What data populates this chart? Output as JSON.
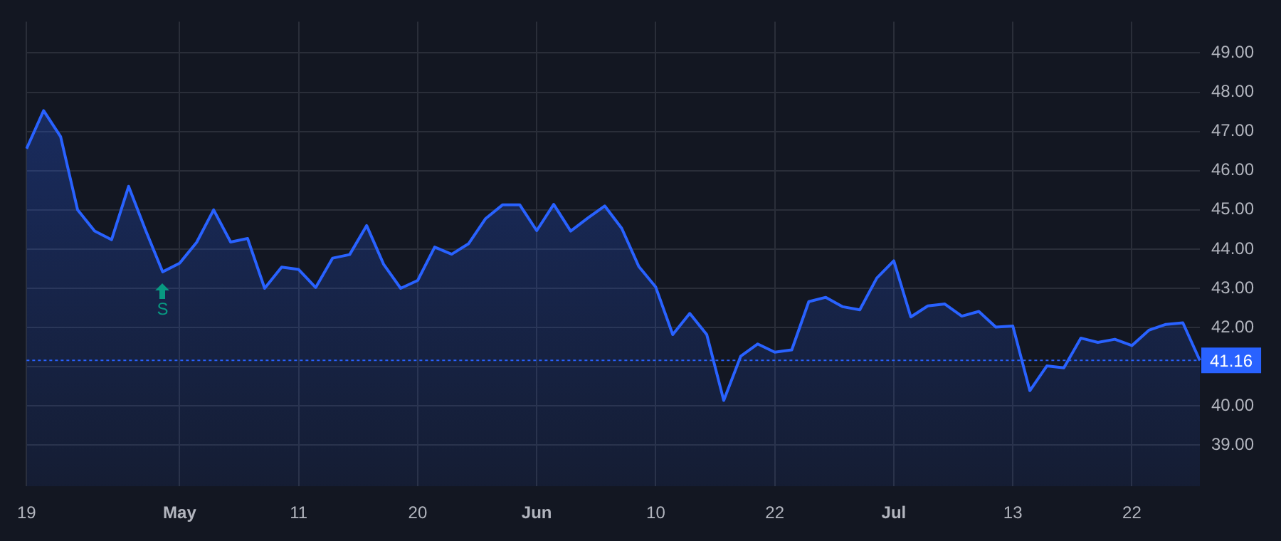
{
  "chart_data": {
    "type": "area",
    "categories": [
      "19",
      null,
      null,
      null,
      null,
      null,
      null,
      null,
      null,
      "May",
      null,
      null,
      null,
      null,
      null,
      null,
      "11",
      null,
      null,
      null,
      null,
      null,
      null,
      "20",
      null,
      null,
      null,
      null,
      null,
      null,
      "Jun",
      null,
      null,
      null,
      null,
      null,
      null,
      "10",
      null,
      null,
      null,
      null,
      null,
      null,
      "22",
      null,
      null,
      null,
      null,
      null,
      null,
      "Jul",
      null,
      null,
      null,
      null,
      null,
      null,
      "13",
      null,
      null,
      null,
      null,
      null,
      null,
      "22",
      null,
      null,
      null,
      null
    ],
    "series": [
      {
        "color": "#2962ff",
        "values": [
          46.56,
          47.53,
          46.87,
          45.0,
          44.46,
          44.24,
          45.6,
          44.48,
          43.42,
          43.64,
          44.17,
          45.0,
          44.18,
          44.27,
          43.0,
          43.54,
          43.48,
          43.02,
          43.77,
          43.86,
          44.6,
          43.61,
          43.0,
          43.2,
          44.05,
          43.87,
          44.14,
          44.78,
          45.13,
          45.13,
          44.47,
          45.14,
          44.46,
          44.79,
          45.1,
          44.53,
          43.56,
          43.03,
          41.82,
          42.36,
          41.82,
          40.14,
          41.27,
          41.58,
          41.37,
          41.43,
          42.66,
          42.77,
          42.53,
          42.45,
          43.26,
          43.7,
          42.27,
          42.55,
          42.6,
          42.29,
          42.41,
          42.01,
          42.04,
          40.39,
          41.02,
          40.97,
          41.73,
          41.62,
          41.7,
          41.54,
          41.93,
          42.08,
          42.12,
          41.16
        ]
      }
    ],
    "ylim": [
      37.95,
      49.8
    ],
    "yticks": [
      {
        "value": 39,
        "label": "39.00"
      },
      {
        "value": 40,
        "label": "40.00"
      },
      {
        "value": 41,
        "label": null
      },
      {
        "value": 42,
        "label": "42.00"
      },
      {
        "value": 43,
        "label": "43.00"
      },
      {
        "value": 44,
        "label": "44.00"
      },
      {
        "value": 45,
        "label": "45.00"
      },
      {
        "value": 46,
        "label": "46.00"
      },
      {
        "value": 47,
        "label": "47.00"
      },
      {
        "value": 48,
        "label": "48.00"
      },
      {
        "value": 49,
        "label": "49.00"
      }
    ],
    "ref_lines": [
      {
        "axis": "y",
        "value": 41.16,
        "label": "41.16",
        "color": "#2962ff",
        "line_style": "dotted"
      }
    ],
    "annotations": [
      {
        "text": "S",
        "y": 43.42
      }
    ],
    "grid": true,
    "legend": false,
    "marker": "none",
    "line_style": "solid"
  }
}
